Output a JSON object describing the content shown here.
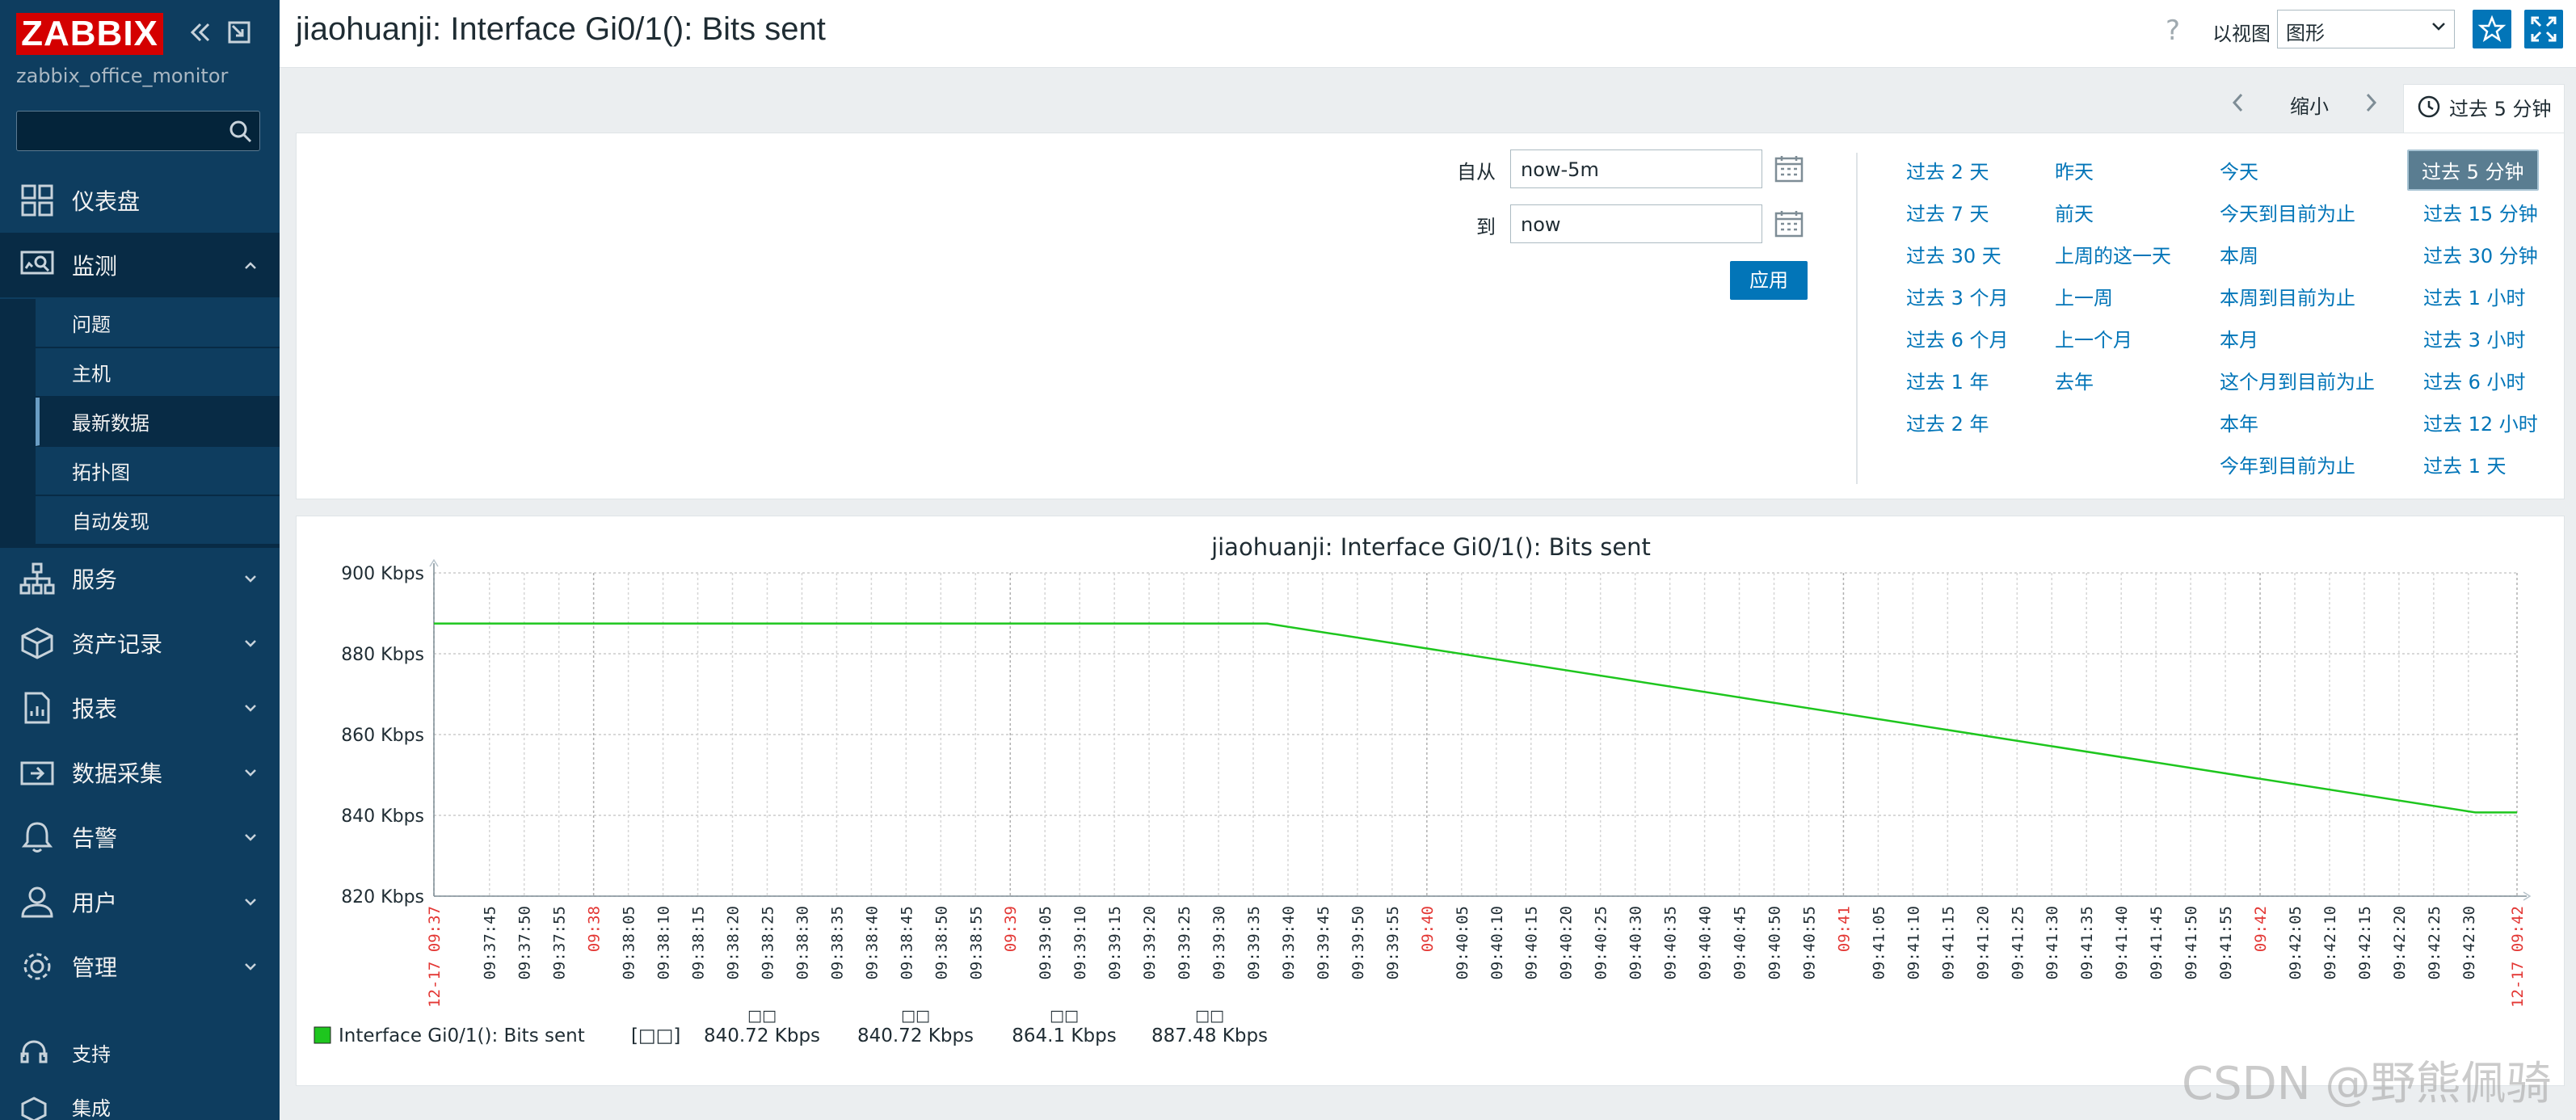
{
  "sidebar": {
    "logo": "ZABBIX",
    "server_name": "zabbix_office_monitor",
    "search_placeholder": "",
    "items": [
      {
        "label": "仪表盘",
        "icon": "dashboard-icon"
      },
      {
        "label": "监测",
        "icon": "monitoring-icon",
        "expanded": true
      },
      {
        "label": "服务",
        "icon": "services-icon"
      },
      {
        "label": "资产记录",
        "icon": "inventory-icon"
      },
      {
        "label": "报表",
        "icon": "reports-icon"
      },
      {
        "label": "数据采集",
        "icon": "data-collection-icon"
      },
      {
        "label": "告警",
        "icon": "alerts-icon"
      },
      {
        "label": "用户",
        "icon": "users-icon"
      },
      {
        "label": "管理",
        "icon": "administration-icon"
      },
      {
        "label": "支持",
        "icon": "support-icon"
      },
      {
        "label": "集成",
        "icon": "integrations-icon"
      }
    ],
    "submenu": [
      "问题",
      "主机",
      "最新数据",
      "拓扑图",
      "自动发现"
    ]
  },
  "header": {
    "title": "jiaohuanji: Interface Gi0/1(): Bits sent",
    "help": "?",
    "view_as_label": "以视图",
    "view_select": "图形"
  },
  "timenav": {
    "zoom_out": "缩小",
    "current_tab": "过去 5 分钟"
  },
  "filter": {
    "from_label": "自从",
    "from_value": "now-5m",
    "to_label": "到",
    "to_value": "now",
    "apply_label": "应用",
    "quick_ranges": [
      [
        "过去 2 天",
        "过去 7 天",
        "过去 30 天",
        "过去 3 个月",
        "过去 6 个月",
        "过去 1 年",
        "过去 2 年"
      ],
      [
        "昨天",
        "前天",
        "上周的这一天",
        "上一周",
        "上一个月",
        "去年"
      ],
      [
        "今天",
        "今天到目前为止",
        "本周",
        "本周到目前为止",
        "本月",
        "这个月到目前为止",
        "本年",
        "今年到目前为止"
      ],
      [
        "过去 5 分钟",
        "过去 15 分钟",
        "过去 30 分钟",
        "过去 1 小时",
        "过去 3 小时",
        "过去 6 小时",
        "过去 12 小时",
        "过去 1 天"
      ]
    ]
  },
  "chart_data": {
    "type": "line",
    "title": "jiaohuanji: Interface Gi0/1(): Bits sent",
    "ylabel_unit": "Kbps",
    "ylim": [
      820,
      900
    ],
    "y_ticks": [
      "900 Kbps",
      "880 Kbps",
      "860 Kbps",
      "840 Kbps",
      "820 Kbps"
    ],
    "grid": true,
    "x_ticks": [
      "12-17 09:37",
      "09:37:45",
      "09:37:50",
      "09:37:55",
      "09:38",
      "09:38:05",
      "09:38:10",
      "09:38:15",
      "09:38:20",
      "09:38:25",
      "09:38:30",
      "09:38:35",
      "09:38:40",
      "09:38:45",
      "09:38:50",
      "09:38:55",
      "09:39",
      "09:39:05",
      "09:39:10",
      "09:39:15",
      "09:39:20",
      "09:39:25",
      "09:39:30",
      "09:39:35",
      "09:39:40",
      "09:39:45",
      "09:39:50",
      "09:39:55",
      "09:40",
      "09:40:05",
      "09:40:10",
      "09:40:15",
      "09:40:20",
      "09:40:25",
      "09:40:30",
      "09:40:35",
      "09:40:40",
      "09:40:45",
      "09:40:50",
      "09:40:55",
      "09:41",
      "09:41:05",
      "09:41:10",
      "09:41:15",
      "09:41:20",
      "09:41:25",
      "09:41:30",
      "09:41:35",
      "09:41:40",
      "09:41:45",
      "09:41:50",
      "09:41:55",
      "09:42",
      "09:42:05",
      "09:42:10",
      "09:42:15",
      "09:42:20",
      "09:42:25",
      "09:42:30",
      "12-17 09:42"
    ],
    "x_ticks_highlight": [
      "12-17 09:37",
      "09:38",
      "09:39",
      "09:40",
      "09:41",
      "09:42",
      "12-17 09:42"
    ],
    "series": [
      {
        "name": "Interface Gi0/1(): Bits sent",
        "color": "#1ec61e",
        "points": [
          {
            "x": "09:37:37",
            "y": 887.48
          },
          {
            "x": "09:39:37",
            "y": 887.48
          },
          {
            "x": "09:42:31",
            "y": 840.72
          },
          {
            "x": "09:42:37",
            "y": 840.72
          }
        ]
      }
    ],
    "legend": {
      "name": "Interface Gi0/1(): Bits sent",
      "func": "[□□]",
      "cols": [
        {
          "head": "□□",
          "value": "840.72 Kbps"
        },
        {
          "head": "□□",
          "value": "840.72 Kbps"
        },
        {
          "head": "□□",
          "value": "864.1 Kbps"
        },
        {
          "head": "□□",
          "value": "887.48 Kbps"
        }
      ]
    }
  },
  "watermark": "CSDN @野熊佩骑"
}
